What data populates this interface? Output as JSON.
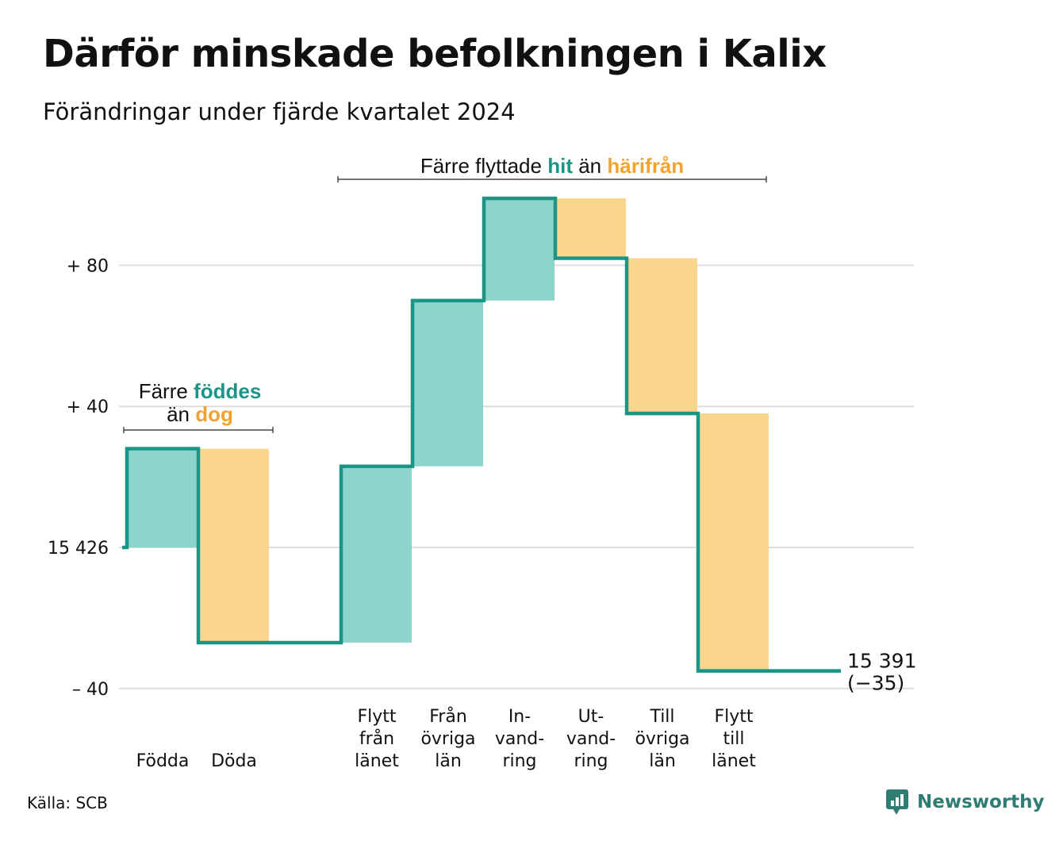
{
  "title": "Därför minskade befolkningen i Kalix",
  "subtitle": "Förändringar under fjärde kvartalet 2024",
  "source": "Källa: SCB",
  "brand": {
    "name": "Newsworthy",
    "icon": "newsworthy-logo-icon"
  },
  "colors": {
    "inflow": "#8dd4cc",
    "outflow": "#f9d58e",
    "line": "#1a9586",
    "accent_teal": "#1a9586",
    "accent_orange": "#f3a22d",
    "grid": "#dddddd",
    "brand": "#2f7d72"
  },
  "annotations": {
    "births": {
      "line1_prefix": "Färre",
      "line1_highlight": "föddes",
      "line2_prefix": "än",
      "line2_highlight": "dog"
    },
    "moves": {
      "prefix": "Färre flyttade",
      "highlight1": "hit",
      "middle": "än",
      "highlight2": "härifrån"
    }
  },
  "chart_data": {
    "type": "waterfall",
    "baseline_label": "15 426",
    "baseline_value": 15426,
    "y_ticks": [
      {
        "value": 80,
        "label": "+ 80"
      },
      {
        "value": 40,
        "label": "+ 40"
      },
      {
        "value": 0,
        "label": "15 426"
      },
      {
        "value": -40,
        "label": "– 40"
      }
    ],
    "ylim": [
      -40,
      100
    ],
    "steps": [
      {
        "label": [
          "Födda"
        ],
        "delta": 28,
        "kind": "in"
      },
      {
        "label": [
          "Döda"
        ],
        "delta": -55,
        "kind": "out"
      },
      {
        "label": [],
        "delta": 0,
        "kind": "none"
      },
      {
        "label": [
          "Flytt",
          "från",
          "länet"
        ],
        "delta": 50,
        "kind": "in"
      },
      {
        "label": [
          "Från",
          "övriga",
          "län"
        ],
        "delta": 47,
        "kind": "in"
      },
      {
        "label": [
          "In-",
          "vand-",
          "ring"
        ],
        "delta": 29,
        "kind": "in"
      },
      {
        "label": [
          "Ut-",
          "vand-",
          "ring"
        ],
        "delta": -17,
        "kind": "out"
      },
      {
        "label": [
          "Till",
          "övriga",
          "län"
        ],
        "delta": -44,
        "kind": "out"
      },
      {
        "label": [
          "Flytt",
          "till",
          "länet"
        ],
        "delta": -73,
        "kind": "out"
      },
      {
        "label": [],
        "delta": 0,
        "kind": "none"
      }
    ],
    "end_label": [
      "15 391",
      "(−35)"
    ],
    "end_value": 15391,
    "net_change": -35
  }
}
